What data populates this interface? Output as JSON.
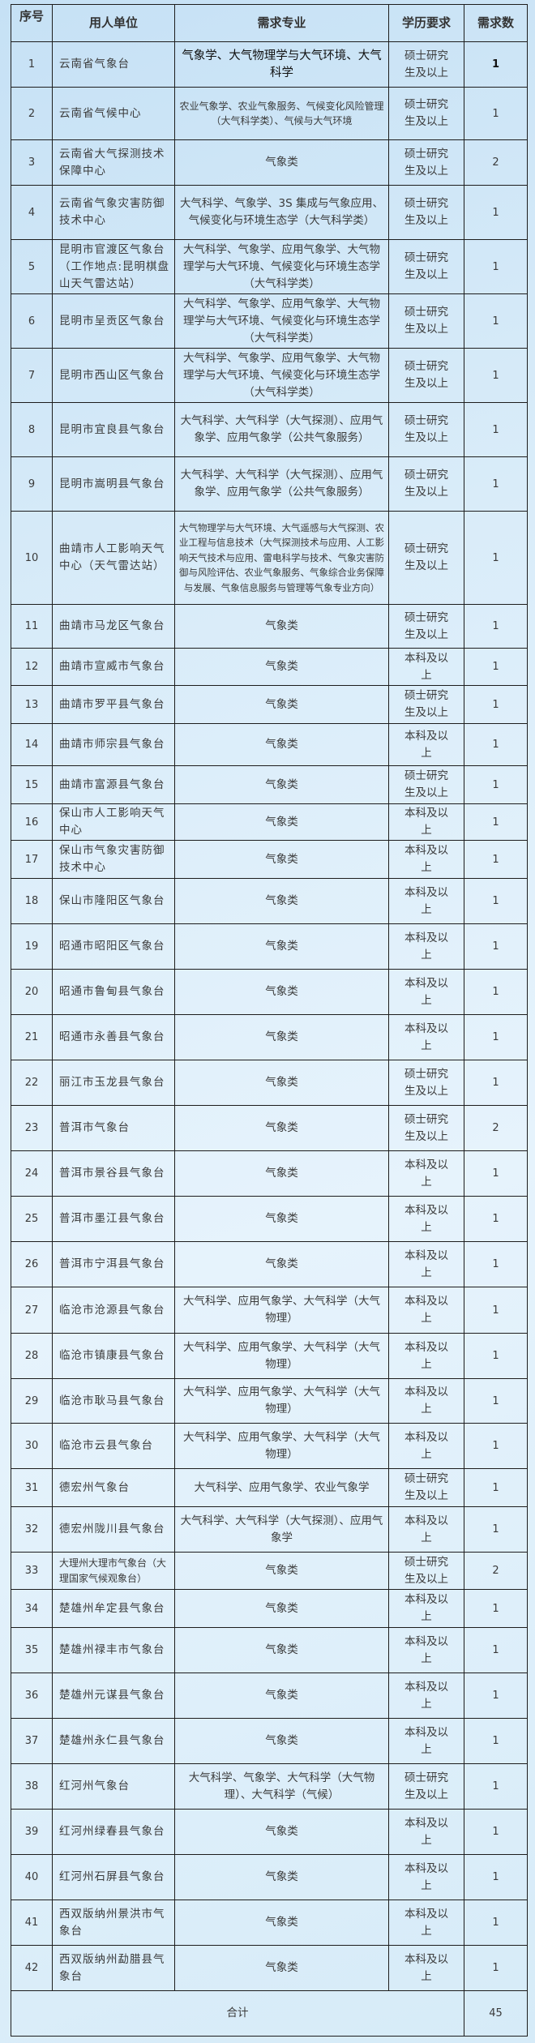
{
  "headers": {
    "seq": "序号",
    "unit": "用人单位",
    "major": "需求专业",
    "edu": "学历要求",
    "count": "需求数"
  },
  "rows": [
    {
      "no": "1",
      "unit": "云南省气象台",
      "major": "气象学、大气物理学与大气环境、大气科学",
      "edu": "硕士研究生及以上",
      "count": "1"
    },
    {
      "no": "2",
      "unit": "云南省气候中心",
      "major": "农业气象学、农业气象服务、气候变化风险管理（大气科学类）、气候与大气环境",
      "edu": "硕士研究生及以上",
      "count": "1"
    },
    {
      "no": "3",
      "unit": "云南省大气探测技术保障中心",
      "major": "气象类",
      "edu": "硕士研究生及以上",
      "count": "2"
    },
    {
      "no": "4",
      "unit": "云南省气象灾害防御技术中心",
      "major": "大气科学、气象学、3S 集成与气象应用、气候变化与环境生态学（大气科学类）",
      "edu": "硕士研究生及以上",
      "count": "1"
    },
    {
      "no": "5",
      "unit": "昆明市官渡区气象台（工作地点:昆明棋盘山天气雷达站）",
      "major": "大气科学、气象学、应用气象学、大气物理学与大气环境、气候变化与环境生态学（大气科学类）",
      "edu": "硕士研究生及以上",
      "count": "1"
    },
    {
      "no": "6",
      "unit": "昆明市呈贡区气象台",
      "major": "大气科学、气象学、应用气象学、大气物理学与大气环境、气候变化与环境生态学（大气科学类）",
      "edu": "硕士研究生及以上",
      "count": "1"
    },
    {
      "no": "7",
      "unit": "昆明市西山区气象台",
      "major": "大气科学、气象学、应用气象学、大气物理学与大气环境、气候变化与环境生态学（大气科学类）",
      "edu": "硕士研究生及以上",
      "count": "1"
    },
    {
      "no": "8",
      "unit": "昆明市宜良县气象台",
      "major": "大气科学、大气科学（大气探测）、应用气象学、应用气象学（公共气象服务）",
      "edu": "硕士研究生及以上",
      "count": "1"
    },
    {
      "no": "9",
      "unit": "昆明市嵩明县气象台",
      "major": "大气科学、大气科学（大气探测）、应用气象学、应用气象学（公共气象服务）",
      "edu": "硕士研究生及以上",
      "count": "1"
    },
    {
      "no": "10",
      "unit": "曲靖市人工影响天气中心（天气雷达站）",
      "major": "大气物理学与大气环境、大气遥感与大气探测、农业工程与信息技术（大气探测技术与应用、人工影响天气技术与应用、雷电科学与技术、气象灾害防御与风险评估、农业气象服务、气象综合业务保障与发展、气象信息服务与管理等气象专业方向）",
      "edu": "硕士研究生及以上",
      "count": "1"
    },
    {
      "no": "11",
      "unit": "曲靖市马龙区气象台",
      "major": "气象类",
      "edu": "硕士研究生及以上",
      "count": "1"
    },
    {
      "no": "12",
      "unit": "曲靖市宣威市气象台",
      "major": "气象类",
      "edu": "本科及以上",
      "count": "1"
    },
    {
      "no": "13",
      "unit": "曲靖市罗平县气象台",
      "major": "气象类",
      "edu": "硕士研究生及以上",
      "count": "1"
    },
    {
      "no": "14",
      "unit": "曲靖市师宗县气象台",
      "major": "气象类",
      "edu": "本科及以上",
      "count": "1"
    },
    {
      "no": "15",
      "unit": "曲靖市富源县气象台",
      "major": "气象类",
      "edu": "硕士研究生及以上",
      "count": "1"
    },
    {
      "no": "16",
      "unit": "保山市人工影响天气中心",
      "major": "气象类",
      "edu": "本科及以上",
      "count": "1"
    },
    {
      "no": "17",
      "unit": "保山市气象灾害防御技术中心",
      "major": "气象类",
      "edu": "本科及以上",
      "count": "1"
    },
    {
      "no": "18",
      "unit": "保山市隆阳区气象台",
      "major": "气象类",
      "edu": "本科及以上",
      "count": "1"
    },
    {
      "no": "19",
      "unit": "昭通市昭阳区气象台",
      "major": "气象类",
      "edu": "本科及以上",
      "count": "1"
    },
    {
      "no": "20",
      "unit": "昭通市鲁甸县气象台",
      "major": "气象类",
      "edu": "本科及以上",
      "count": "1"
    },
    {
      "no": "21",
      "unit": "昭通市永善县气象台",
      "major": "气象类",
      "edu": "本科及以上",
      "count": "1"
    },
    {
      "no": "22",
      "unit": "丽江市玉龙县气象台",
      "major": "气象类",
      "edu": "硕士研究生及以上",
      "count": "1"
    },
    {
      "no": "23",
      "unit": "普洱市气象台",
      "major": "气象类",
      "edu": "硕士研究生及以上",
      "count": "2"
    },
    {
      "no": "24",
      "unit": "普洱市景谷县气象台",
      "major": "气象类",
      "edu": "本科及以上",
      "count": "1"
    },
    {
      "no": "25",
      "unit": "普洱市墨江县气象台",
      "major": "气象类",
      "edu": "本科及以上",
      "count": "1"
    },
    {
      "no": "26",
      "unit": "普洱市宁洱县气象台",
      "major": "气象类",
      "edu": "本科及以上",
      "count": "1"
    },
    {
      "no": "27",
      "unit": "临沧市沧源县气象台",
      "major": "大气科学、应用气象学、大气科学（大气物理）",
      "edu": "本科及以上",
      "count": "1"
    },
    {
      "no": "28",
      "unit": "临沧市镇康县气象台",
      "major": "大气科学、应用气象学、大气科学（大气物理）",
      "edu": "本科及以上",
      "count": "1"
    },
    {
      "no": "29",
      "unit": "临沧市耿马县气象台",
      "major": "大气科学、应用气象学、大气科学（大气物理）",
      "edu": "本科及以上",
      "count": "1"
    },
    {
      "no": "30",
      "unit": "临沧市云县气象台",
      "major": "大气科学、应用气象学、大气科学（大气物理）",
      "edu": "本科及以上",
      "count": "1"
    },
    {
      "no": "31",
      "unit": "德宏州气象台",
      "major": "大气科学、应用气象学、农业气象学",
      "edu": "硕士研究生及以上",
      "count": "1"
    },
    {
      "no": "32",
      "unit": "德宏州陇川县气象台",
      "major": "大气科学、大气科学（大气探测）、应用气象学",
      "edu": "本科及以上",
      "count": "1"
    },
    {
      "no": "33",
      "unit": "大理州大理市气象台（大理国家气候观象台）",
      "major": "气象类",
      "edu": "硕士研究生及以上",
      "count": "2"
    },
    {
      "no": "34",
      "unit": "楚雄州牟定县气象台",
      "major": "气象类",
      "edu": "本科及以上",
      "count": "1"
    },
    {
      "no": "35",
      "unit": "楚雄州禄丰市气象台",
      "major": "气象类",
      "edu": "本科及以上",
      "count": "1"
    },
    {
      "no": "36",
      "unit": "楚雄州元谋县气象台",
      "major": "气象类",
      "edu": "本科及以上",
      "count": "1"
    },
    {
      "no": "37",
      "unit": "楚雄州永仁县气象台",
      "major": "气象类",
      "edu": "本科及以上",
      "count": "1"
    },
    {
      "no": "38",
      "unit": "红河州气象台",
      "major": "大气科学、气象学、大气科学（大气物理）、大气科学（气候）",
      "edu": "硕士研究生及以上",
      "count": "1"
    },
    {
      "no": "39",
      "unit": "红河州绿春县气象台",
      "major": "气象类",
      "edu": "本科及以上",
      "count": "1"
    },
    {
      "no": "40",
      "unit": "红河州石屏县气象台",
      "major": "气象类",
      "edu": "本科及以上",
      "count": "1"
    },
    {
      "no": "41",
      "unit": "西双版纳州景洪市气象台",
      "major": "气象类",
      "edu": "本科及以上",
      "count": "1"
    },
    {
      "no": "42",
      "unit": "西双版纳州勐腊县气象台",
      "major": "气象类",
      "edu": "本科及以上",
      "count": "1"
    }
  ],
  "total": {
    "label": "合计",
    "count": "45"
  }
}
